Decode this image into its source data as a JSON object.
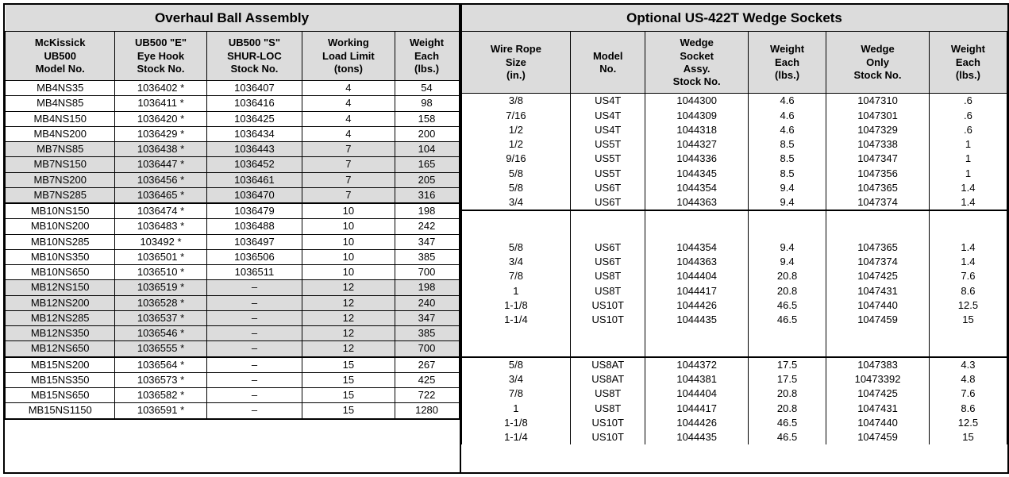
{
  "leftTable": {
    "title": "Overhaul Ball Assembly",
    "headers": [
      "McKissick\nUB500\nModel No.",
      "UB500 \"E\"\nEye Hook\nStock No.",
      "UB500 \"S\"\nSHUR-LOC\nStock No.",
      "Working\nLoad Limit\n(tons)",
      "Weight\nEach\n(lbs.)"
    ],
    "groups": [
      {
        "shaded": false,
        "rows": [
          [
            "MB4NS35",
            "1036402 *",
            "1036407",
            "4",
            "54"
          ],
          [
            "MB4NS85",
            "1036411 *",
            "1036416",
            "4",
            "98"
          ],
          [
            "MB4NS150",
            "1036420 *",
            "1036425",
            "4",
            "158"
          ],
          [
            "MB4NS200",
            "1036429 *",
            "1036434",
            "4",
            "200"
          ]
        ]
      },
      {
        "shaded": true,
        "rows": [
          [
            "MB7NS85",
            "1036438 *",
            "1036443",
            "7",
            "104"
          ],
          [
            "MB7NS150",
            "1036447 *",
            "1036452",
            "7",
            "165"
          ],
          [
            "MB7NS200",
            "1036456 *",
            "1036461",
            "7",
            "205"
          ],
          [
            "MB7NS285",
            "1036465 *",
            "1036470",
            "7",
            "316"
          ]
        ]
      },
      {
        "shaded": false,
        "thickTop": true,
        "rows": [
          [
            "MB10NS150",
            "1036474 *",
            "1036479",
            "10",
            "198"
          ],
          [
            "MB10NS200",
            "1036483 *",
            "1036488",
            "10",
            "242"
          ],
          [
            "MB10NS285",
            "103492 *",
            "1036497",
            "10",
            "347"
          ],
          [
            "MB10NS350",
            "1036501 *",
            "1036506",
            "10",
            "385"
          ],
          [
            "MB10NS650",
            "1036510 *",
            "1036511",
            "10",
            "700"
          ]
        ]
      },
      {
        "shaded": true,
        "rows": [
          [
            "MB12NS150",
            "1036519 *",
            "–",
            "12",
            "198"
          ],
          [
            "MB12NS200",
            "1036528 *",
            "–",
            "12",
            "240"
          ],
          [
            "MB12NS285",
            "1036537 *",
            "–",
            "12",
            "347"
          ],
          [
            "MB12NS350",
            "1036546 *",
            "–",
            "12",
            "385"
          ],
          [
            "MB12NS650",
            "1036555 *",
            "–",
            "12",
            "700"
          ]
        ]
      },
      {
        "shaded": false,
        "thickTop": true,
        "rows": [
          [
            "MB15NS200",
            "1036564 *",
            "–",
            "15",
            "267"
          ],
          [
            "MB15NS350",
            "1036573 *",
            "–",
            "15",
            "425"
          ],
          [
            "MB15NS650",
            "1036582 *",
            "–",
            "15",
            "722"
          ],
          [
            "MB15NS1150",
            "1036591 *",
            "–",
            "15",
            "1280"
          ]
        ]
      }
    ]
  },
  "rightTable": {
    "title": "Optional US-422T Wedge Sockets",
    "headers": [
      "Wire Rope\nSize\n(in.)",
      "Model\nNo.",
      "Wedge\nSocket\nAssy.\nStock No.",
      "Weight\nEach\n(lbs.)",
      "Wedge\nOnly\nStock No.",
      "Weight\nEach\n(lbs.)"
    ],
    "groups": [
      {
        "rows": [
          [
            "3/8",
            "US4T",
            "1044300",
            "4.6",
            "1047310",
            ".6"
          ],
          [
            "7/16",
            "US4T",
            "1044309",
            "4.6",
            "1047301",
            ".6"
          ],
          [
            "1/2",
            "US4T",
            "1044318",
            "4.6",
            "1047329",
            ".6"
          ],
          [
            "1/2",
            "US5T",
            "1044327",
            "8.5",
            "1047338",
            "1"
          ],
          [
            "9/16",
            "US5T",
            "1044336",
            "8.5",
            "1047347",
            "1"
          ],
          [
            "5/8",
            "US5T",
            "1044345",
            "8.5",
            "1047356",
            "1"
          ],
          [
            "5/8",
            "US6T",
            "1044354",
            "9.4",
            "1047365",
            "1.4"
          ],
          [
            "3/4",
            "US6T",
            "1044363",
            "9.4",
            "1047374",
            "1.4"
          ]
        ]
      },
      {
        "padTop": true,
        "rows": [
          [
            "",
            "",
            "",
            "",
            "",
            ""
          ],
          [
            "",
            "",
            "",
            "",
            "",
            ""
          ],
          [
            "5/8",
            "US6T",
            "1044354",
            "9.4",
            "1047365",
            "1.4"
          ],
          [
            "3/4",
            "US6T",
            "1044363",
            "9.4",
            "1047374",
            "1.4"
          ],
          [
            "7/8",
            "US8T",
            "1044404",
            "20.8",
            "1047425",
            "7.6"
          ],
          [
            "1",
            "US8T",
            "1044417",
            "20.8",
            "1047431",
            "8.6"
          ],
          [
            "1-1/8",
            "US10T",
            "1044426",
            "46.5",
            "1047440",
            "12.5"
          ],
          [
            "1-1/4",
            "US10T",
            "1044435",
            "46.5",
            "1047459",
            "15"
          ],
          [
            "",
            "",
            "",
            "",
            "",
            ""
          ],
          [
            "",
            "",
            "",
            "",
            "",
            ""
          ]
        ]
      },
      {
        "rows": [
          [
            "5/8",
            "US8AT",
            "1044372",
            "17.5",
            "1047383",
            "4.3"
          ],
          [
            "3/4",
            "US8AT",
            "1044381",
            "17.5",
            "10473392",
            "4.8"
          ],
          [
            "7/8",
            "US8T",
            "1044404",
            "20.8",
            "1047425",
            "7.6"
          ],
          [
            "1",
            "US8T",
            "1044417",
            "20.8",
            "1047431",
            "8.6"
          ],
          [
            "1-1/8",
            "US10T",
            "1044426",
            "46.5",
            "1047440",
            "12.5"
          ],
          [
            "1-1/4",
            "US10T",
            "1044435",
            "46.5",
            "1047459",
            "15"
          ]
        ]
      }
    ]
  },
  "colors": {
    "shade": "#dcdcdc",
    "border": "#000000",
    "bg": "#ffffff"
  }
}
